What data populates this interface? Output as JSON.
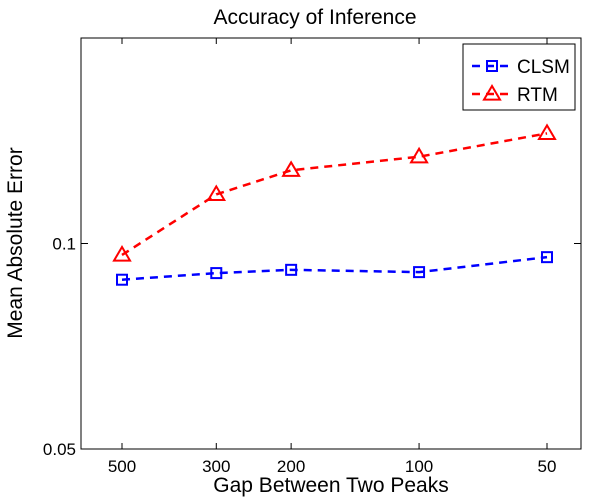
{
  "chart_data": {
    "type": "line",
    "title": "Accuracy of Inference",
    "xlabel": "Gap Between Two Peaks",
    "ylabel": "Mean Absolute Error",
    "x": [
      500,
      300,
      200,
      100,
      50
    ],
    "x_axis_reversed": true,
    "x_ticks": [
      "500",
      "300",
      "200",
      "100",
      "50"
    ],
    "y_scale": "log",
    "ylim": [
      0.05,
      0.2
    ],
    "y_ticks": [
      {
        "value": 0.05,
        "label": "0.05"
      },
      {
        "value": 0.1,
        "label": "0.1"
      }
    ],
    "legend_position": "top-right",
    "grid": false,
    "series": [
      {
        "name": "CLSM",
        "color": "#0000ff",
        "marker": "square",
        "line": "dashed",
        "values": [
          0.0885,
          0.0905,
          0.0915,
          0.0908,
          0.0955
        ]
      },
      {
        "name": "RTM",
        "color": "#ff0000",
        "marker": "triangle",
        "line": "dashed",
        "values": [
          0.0962,
          0.118,
          0.128,
          0.134,
          0.145
        ]
      }
    ]
  }
}
